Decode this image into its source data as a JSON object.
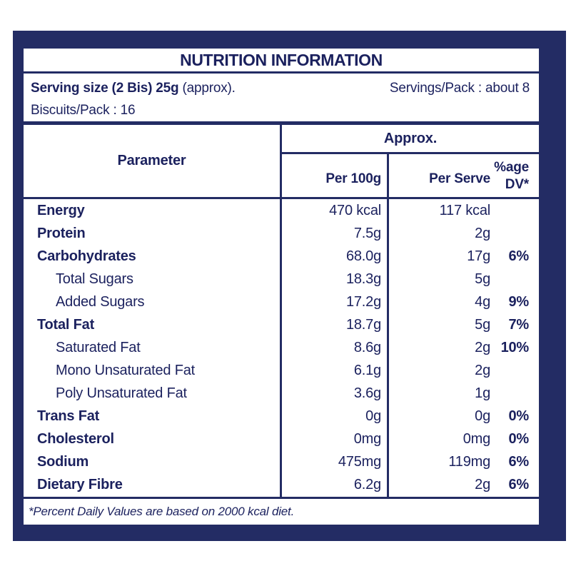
{
  "colors": {
    "card_navy": "#232c64",
    "text_navy": "#1b215e",
    "panel_white": "#ffffff"
  },
  "title": "NUTRITION INFORMATION",
  "serving": {
    "serving_size_bold": "Serving size (2 Bis) 25g",
    "serving_size_suffix": " (approx).",
    "servings_per_pack": "Servings/Pack : about 8",
    "biscuits_per_pack": "Biscuits/Pack : 16"
  },
  "table": {
    "header": {
      "parameter": "Parameter",
      "approx": "Approx.",
      "per_100g": "Per 100g",
      "per_serve": "Per Serve",
      "pct_line1": "%age",
      "pct_line2": "DV*"
    },
    "rows": [
      {
        "label": "Energy",
        "bold": true,
        "indent": false,
        "per100g": "470 kcal",
        "perServe": "117 kcal",
        "pct": ""
      },
      {
        "label": "Protein",
        "bold": true,
        "indent": false,
        "per100g": "7.5g",
        "perServe": "2g",
        "pct": ""
      },
      {
        "label": "Carbohydrates",
        "bold": true,
        "indent": false,
        "per100g": "68.0g",
        "perServe": "17g",
        "pct": "6%"
      },
      {
        "label": "Total Sugars",
        "bold": false,
        "indent": true,
        "per100g": "18.3g",
        "perServe": "5g",
        "pct": ""
      },
      {
        "label": "Added Sugars",
        "bold": false,
        "indent": true,
        "per100g": "17.2g",
        "perServe": "4g",
        "pct": "9%"
      },
      {
        "label": "Total Fat",
        "bold": true,
        "indent": false,
        "per100g": "18.7g",
        "perServe": "5g",
        "pct": "7%"
      },
      {
        "label": "Saturated Fat",
        "bold": false,
        "indent": true,
        "per100g": "8.6g",
        "perServe": "2g",
        "pct": "10%"
      },
      {
        "label": "Mono Unsaturated Fat",
        "bold": false,
        "indent": true,
        "per100g": "6.1g",
        "perServe": "2g",
        "pct": ""
      },
      {
        "label": "Poly Unsaturated Fat",
        "bold": false,
        "indent": true,
        "per100g": "3.6g",
        "perServe": "1g",
        "pct": ""
      },
      {
        "label": "Trans Fat",
        "bold": true,
        "indent": false,
        "per100g": "0g",
        "perServe": "0g",
        "pct": "0%"
      },
      {
        "label": "Cholesterol",
        "bold": true,
        "indent": false,
        "per100g": "0mg",
        "perServe": "0mg",
        "pct": "0%"
      },
      {
        "label": "Sodium",
        "bold": true,
        "indent": false,
        "per100g": "475mg",
        "perServe": "119mg",
        "pct": "6%"
      },
      {
        "label": "Dietary Fibre",
        "bold": true,
        "indent": false,
        "per100g": "6.2g",
        "perServe": "2g",
        "pct": "6%"
      }
    ]
  },
  "footnote": "*Percent Daily Values are based on 2000 kcal diet."
}
